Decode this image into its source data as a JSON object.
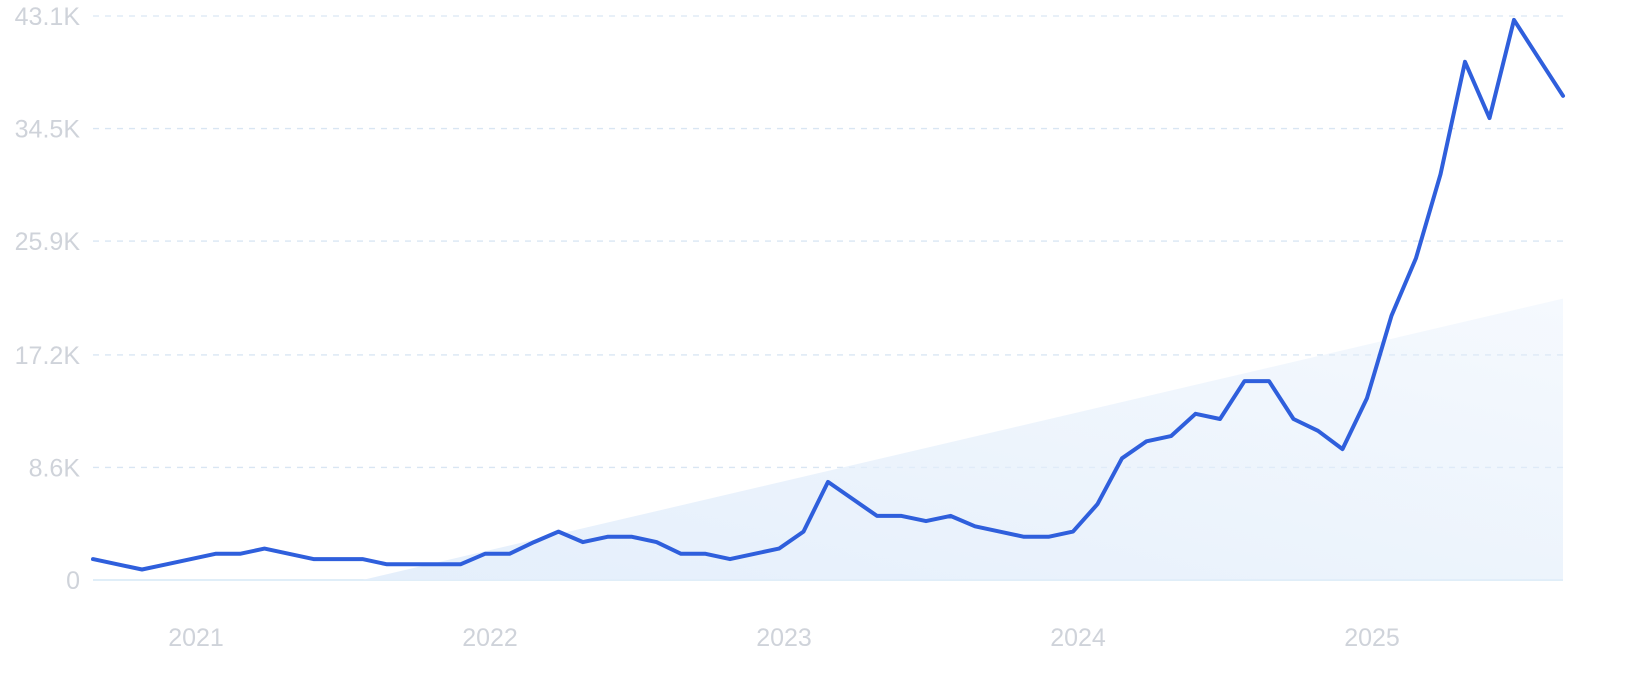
{
  "chart_data": {
    "type": "line",
    "yticks": [
      "0",
      "8.6K",
      "17.2K",
      "25.9K",
      "34.5K",
      "43.1K"
    ],
    "ytick_values": [
      0,
      8600,
      17200,
      25900,
      34500,
      43100
    ],
    "ylim": [
      0,
      43100
    ],
    "xticks": [
      "2021",
      "2022",
      "2023",
      "2024",
      "2025"
    ],
    "grid": true,
    "legend": "none",
    "colors": {
      "line": "#2f5fdc",
      "trend_fill": "#e3eefb",
      "grid": "#d9e6f3",
      "tick_text": "#cfd3da"
    },
    "trend": {
      "start": "2021-08",
      "end": "2025-08",
      "start_value": 0,
      "end_value": 21500
    },
    "series": [
      {
        "x": [
          "2020-09",
          "2020-10",
          "2020-11",
          "2020-12",
          "2021-01",
          "2021-02",
          "2021-03",
          "2021-04",
          "2021-05",
          "2021-06",
          "2021-07",
          "2021-08",
          "2021-09",
          "2021-10",
          "2021-11",
          "2021-12",
          "2022-01",
          "2022-02",
          "2022-03",
          "2022-04",
          "2022-05",
          "2022-06",
          "2022-07",
          "2022-08",
          "2022-09",
          "2022-10",
          "2022-11",
          "2022-12",
          "2023-01",
          "2023-02",
          "2023-03",
          "2023-04",
          "2023-05",
          "2023-06",
          "2023-07",
          "2023-08",
          "2023-09",
          "2023-10",
          "2023-11",
          "2023-12",
          "2024-01",
          "2024-02",
          "2024-03",
          "2024-04",
          "2024-05",
          "2024-06",
          "2024-07",
          "2024-08",
          "2024-09",
          "2024-10",
          "2024-11",
          "2024-12",
          "2025-01",
          "2025-02",
          "2025-03",
          "2025-04",
          "2025-05",
          "2025-06",
          "2025-07",
          "2025-08",
          "2025-09"
        ],
        "values": [
          1600,
          1200,
          800,
          1200,
          1600,
          2000,
          2000,
          2400,
          2000,
          1600,
          1600,
          1600,
          1200,
          1200,
          1200,
          1200,
          2000,
          2000,
          2900,
          3700,
          2900,
          3300,
          3300,
          2900,
          2000,
          2000,
          1600,
          2000,
          2400,
          3700,
          7500,
          6200,
          4900,
          4900,
          4500,
          4900,
          4100,
          3700,
          3300,
          3300,
          3700,
          5800,
          9300,
          10600,
          11000,
          12700,
          12300,
          15200,
          15200,
          12300,
          11400,
          10000,
          13900,
          20200,
          24600,
          31000,
          39600,
          35300,
          42800,
          39900,
          37000
        ]
      }
    ]
  }
}
